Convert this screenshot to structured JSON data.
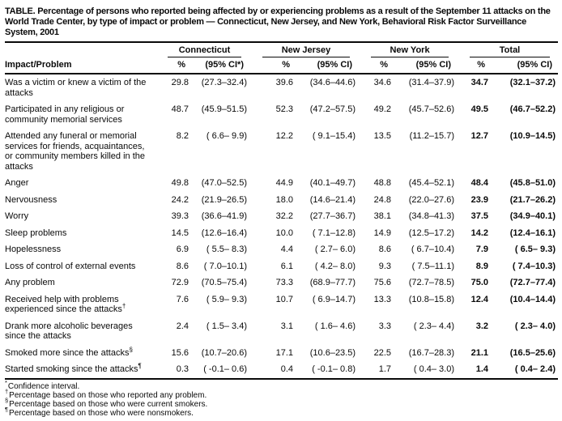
{
  "title": "TABLE. Percentage of persons who reported being affected by or experiencing problems as a result of the September 11 attacks on the World Trade Center, by type of impact or problem — Connecticut, New Jersey, and New York, Behavioral Risk Factor Surveillance System, 2001",
  "table": {
    "row_header": "Impact/Problem",
    "groups": [
      {
        "label": "Connecticut",
        "pct_header": "%",
        "ci_header": "(95% CI*)"
      },
      {
        "label": "New Jersey",
        "pct_header": "%",
        "ci_header": "(95% CI)"
      },
      {
        "label": "New York",
        "pct_header": "%",
        "ci_header": "(95% CI)"
      },
      {
        "label": "Total",
        "pct_header": "%",
        "ci_header": "(95% CI)"
      }
    ],
    "rows": [
      {
        "label": "Was a victim or knew a victim of the attacks",
        "marker": "",
        "values": [
          "29.8",
          "(27.3–32.4)",
          "39.6",
          "(34.6–44.6)",
          "34.6",
          "(31.4–37.9)",
          "34.7",
          "(32.1–37.2)"
        ]
      },
      {
        "label": "Participated in any religious or community memorial services",
        "marker": "",
        "values": [
          "48.7",
          "(45.9–51.5)",
          "52.3",
          "(47.2–57.5)",
          "49.2",
          "(45.7–52.6)",
          "49.5",
          "(46.7–52.2)"
        ]
      },
      {
        "label": "Attended any funeral or memorial services for friends, acquaintances, or community members killed in the attacks",
        "marker": "",
        "values": [
          "8.2",
          "( 6.6– 9.9)",
          "12.2",
          "( 9.1–15.4)",
          "13.5",
          "(11.2–15.7)",
          "12.7",
          "(10.9–14.5)"
        ]
      },
      {
        "label": "Anger",
        "marker": "",
        "values": [
          "49.8",
          "(47.0–52.5)",
          "44.9",
          "(40.1–49.7)",
          "48.8",
          "(45.4–52.1)",
          "48.4",
          "(45.8–51.0)"
        ]
      },
      {
        "label": "Nervousness",
        "marker": "",
        "values": [
          "24.2",
          "(21.9–26.5)",
          "18.0",
          "(14.6–21.4)",
          "24.8",
          "(22.0–27.6)",
          "23.9",
          "(21.7–26.2)"
        ]
      },
      {
        "label": "Worry",
        "marker": "",
        "values": [
          "39.3",
          "(36.6–41.9)",
          "32.2",
          "(27.7–36.7)",
          "38.1",
          "(34.8–41.3)",
          "37.5",
          "(34.9–40.1)"
        ]
      },
      {
        "label": "Sleep problems",
        "marker": "",
        "values": [
          "14.5",
          "(12.6–16.4)",
          "10.0",
          "( 7.1–12.8)",
          "14.9",
          "(12.5–17.2)",
          "14.2",
          "(12.4–16.1)"
        ]
      },
      {
        "label": "Hopelessness",
        "marker": "",
        "values": [
          "6.9",
          "( 5.5– 8.3)",
          "4.4",
          "( 2.7– 6.0)",
          "8.6",
          "( 6.7–10.4)",
          "7.9",
          "( 6.5– 9.3)"
        ]
      },
      {
        "label": "Loss of control of external events",
        "marker": "",
        "values": [
          "8.6",
          "( 7.0–10.1)",
          "6.1",
          "( 4.2– 8.0)",
          "9.3",
          "( 7.5–11.1)",
          "8.9",
          "( 7.4–10.3)"
        ]
      },
      {
        "label": "Any problem",
        "marker": "",
        "values": [
          "72.9",
          "(70.5–75.4)",
          "73.3",
          "(68.9–77.7)",
          "75.6",
          "(72.7–78.5)",
          "75.0",
          "(72.7–77.4)"
        ]
      },
      {
        "label": "Received help with problems experienced since the attacks",
        "marker": "†",
        "values": [
          "7.6",
          "( 5.9– 9.3)",
          "10.7",
          "( 6.9–14.7)",
          "13.3",
          "(10.8–15.8)",
          "12.4",
          "(10.4–14.4)"
        ]
      },
      {
        "label": "Drank more alcoholic beverages since the attacks",
        "marker": "",
        "values": [
          "2.4",
          "( 1.5– 3.4)",
          "3.1",
          "( 1.6– 4.6)",
          "3.3",
          "( 2.3– 4.4)",
          "3.2",
          "( 2.3– 4.0)"
        ]
      },
      {
        "label": "Smoked more since the attacks",
        "marker": "§",
        "values": [
          "15.6",
          "(10.7–20.6)",
          "17.1",
          "(10.6–23.5)",
          "22.5",
          "(16.7–28.3)",
          "21.1",
          "(16.5–25.6)"
        ]
      },
      {
        "label": "Started smoking since the attacks",
        "marker": "¶",
        "values": [
          "0.3",
          "( -0.1– 0.6)",
          "0.4",
          "( -0.1– 0.8)",
          "1.7",
          "( 0.4– 3.0)",
          "1.4",
          "( 0.4– 2.4)"
        ]
      }
    ]
  },
  "footnotes": [
    {
      "marker": "*",
      "text": "Confidence interval."
    },
    {
      "marker": "†",
      "text": "Percentage based on those who reported any problem."
    },
    {
      "marker": "§",
      "text": "Percentage based on those who were current smokers."
    },
    {
      "marker": "¶",
      "text": "Percentage based on those who were nonsmokers."
    }
  ]
}
